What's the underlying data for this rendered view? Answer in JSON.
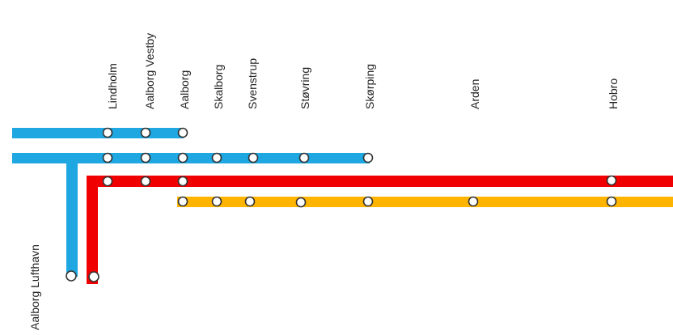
{
  "diagram": {
    "title": "",
    "stations": [
      {
        "id": "lindholm",
        "label": "Lindholm"
      },
      {
        "id": "aalborg_vestby",
        "label": "Aalborg Vestby"
      },
      {
        "id": "aalborg",
        "label": "Aalborg"
      },
      {
        "id": "skalborg",
        "label": "Skalborg"
      },
      {
        "id": "svenstrup",
        "label": "Svenstrup"
      },
      {
        "id": "stovring",
        "label": "Støvring"
      },
      {
        "id": "skorping",
        "label": "Skørping"
      },
      {
        "id": "arden",
        "label": "Arden"
      },
      {
        "id": "hobro",
        "label": "Hobro"
      },
      {
        "id": "aalborg_lufthavn",
        "label": "Aalborg Lufthavn"
      }
    ],
    "lines": [
      {
        "id": "blue-1",
        "color": "#1EA7E1",
        "stops": [
          "lindholm",
          "aalborg_vestby",
          "aalborg"
        ]
      },
      {
        "id": "blue-2",
        "color": "#1EA7E1",
        "stops": [
          "lindholm",
          "aalborg_vestby",
          "aalborg",
          "skalborg",
          "svenstrup",
          "stovring",
          "skorping"
        ]
      },
      {
        "id": "blue-airport",
        "color": "#1EA7E1",
        "stops": [
          "aalborg_lufthavn"
        ]
      },
      {
        "id": "red",
        "color": "#F00000",
        "stops": [
          "aalborg_lufthavn",
          "lindholm",
          "aalborg_vestby",
          "aalborg",
          "hobro"
        ]
      },
      {
        "id": "yellow",
        "color": "#FFB400",
        "stops": [
          "aalborg",
          "skalborg",
          "svenstrup",
          "stovring",
          "skorping",
          "arden",
          "hobro"
        ]
      }
    ]
  }
}
